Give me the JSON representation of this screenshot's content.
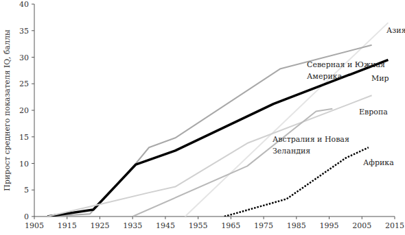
{
  "chart_data": {
    "type": "line",
    "y_label": "Прирост среднего показателя IQ, баллы",
    "xlim": [
      1905,
      2015
    ],
    "xticks": [
      1905,
      1915,
      1925,
      1935,
      1945,
      1955,
      1965,
      1975,
      1985,
      1995,
      2005,
      2015
    ],
    "ylim": [
      0,
      40
    ],
    "yticks": [
      0,
      5,
      10,
      15,
      20,
      25,
      30,
      35,
      40
    ],
    "grid": false,
    "series": [
      {
        "name": "Азия",
        "color": "#e4e4e4",
        "line_style": "solid",
        "x": [
          1951,
          2013
        ],
        "values": [
          0,
          36.5
        ]
      },
      {
        "name": "Северная и Южная Америка",
        "color": "#a8a8a8",
        "line_style": "solid",
        "x": [
          1909,
          1922,
          1936,
          1940,
          1948,
          1980,
          2008
        ],
        "values": [
          0,
          0.5,
          10,
          13,
          14.8,
          27.8,
          32.3
        ]
      },
      {
        "name": "Мир",
        "color": "#000000",
        "line_style": "bold",
        "x": [
          1909,
          1923,
          1936,
          1948,
          1978,
          2013
        ],
        "values": [
          0,
          1.3,
          9.8,
          12.4,
          21.2,
          29.5
        ]
      },
      {
        "name": "Европа",
        "color": "#d0d0d0",
        "line_style": "solid",
        "x": [
          1909,
          1925,
          1940,
          1948,
          1970,
          2008
        ],
        "values": [
          0,
          2.3,
          4.5,
          5.6,
          13.8,
          22.8
        ]
      },
      {
        "name": "Австралия и Новая Зеландия",
        "color": "#b8b8b8",
        "line_style": "solid",
        "x": [
          1935,
          1970,
          1991,
          1996
        ],
        "values": [
          0,
          9.5,
          19.8,
          20.3
        ]
      },
      {
        "name": "Африка",
        "color": "#000000",
        "line_style": "dotted",
        "x": [
          1963,
          1982,
          2000,
          2007
        ],
        "values": [
          0,
          3.3,
          11,
          13
        ]
      }
    ]
  }
}
